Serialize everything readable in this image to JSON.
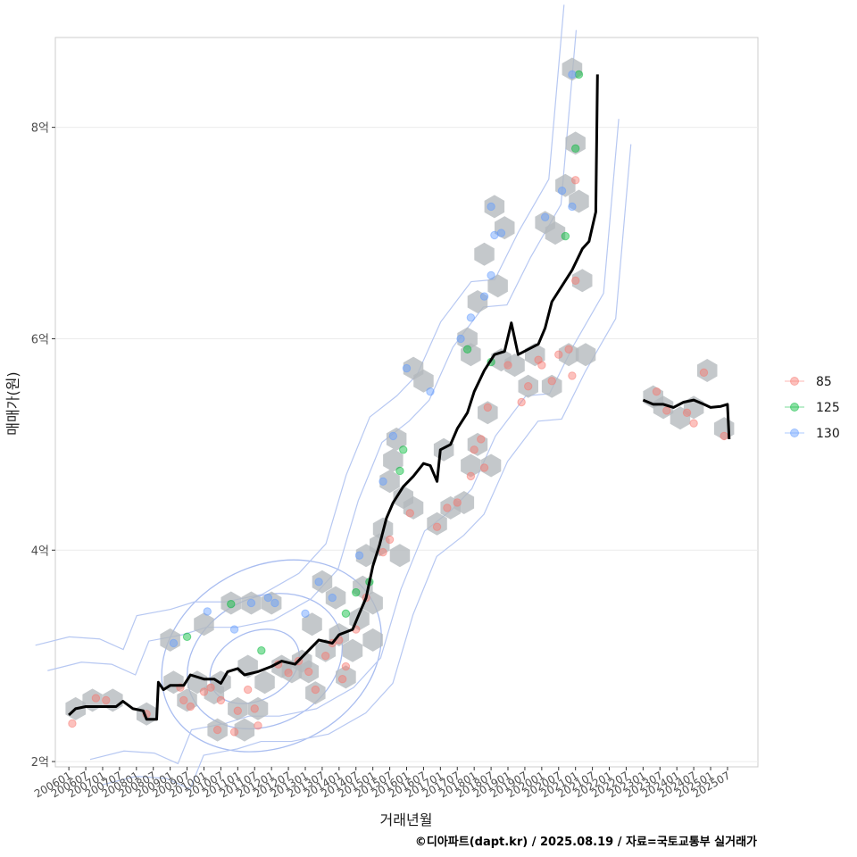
{
  "chart_data": {
    "type": "scatter",
    "xlabel": "거래년월",
    "ylabel": "매매가(원)",
    "caption": "©디아파트(dapt.kr) / 2025.08.19 / 자료=국토교통부 실거래가",
    "x_ticks": [
      "200601",
      "200607",
      "200701",
      "200707",
      "200801",
      "200807",
      "200901",
      "200907",
      "201001",
      "201007",
      "201101",
      "201107",
      "201201",
      "201207",
      "201301",
      "201307",
      "201401",
      "201407",
      "201501",
      "201507",
      "201601",
      "201607",
      "201701",
      "201707",
      "201801",
      "201807",
      "201901",
      "201907",
      "202001",
      "202007",
      "202101",
      "202107",
      "202201",
      "202207",
      "202301",
      "202307",
      "202401",
      "202407",
      "202501",
      "202507"
    ],
    "y_ticks": [
      {
        "value": 2,
        "label": "2억"
      },
      {
        "value": 4,
        "label": "4억"
      },
      {
        "value": 6,
        "label": "6억"
      },
      {
        "value": 8,
        "label": "8억"
      }
    ],
    "x_range": [
      2005.6,
      2026.4
    ],
    "y_range": [
      1.95,
      8.85
    ],
    "grid": true,
    "legend_position": "right",
    "legend": [
      {
        "name": "85",
        "color": "#F8766D"
      },
      {
        "name": "125",
        "color": "#00BA38"
      },
      {
        "name": "130",
        "color": "#619CFF"
      }
    ],
    "median_line": [
      [
        2006.0,
        2.44
      ],
      [
        2006.2,
        2.5
      ],
      [
        2006.5,
        2.52
      ],
      [
        2007.0,
        2.52
      ],
      [
        2007.4,
        2.52
      ],
      [
        2007.6,
        2.57
      ],
      [
        2007.9,
        2.5
      ],
      [
        2008.2,
        2.48
      ],
      [
        2008.3,
        2.4
      ],
      [
        2008.6,
        2.4
      ],
      [
        2008.65,
        2.75
      ],
      [
        2008.8,
        2.68
      ],
      [
        2009.0,
        2.72
      ],
      [
        2009.4,
        2.72
      ],
      [
        2009.6,
        2.82
      ],
      [
        2010.0,
        2.78
      ],
      [
        2010.3,
        2.78
      ],
      [
        2010.5,
        2.74
      ],
      [
        2010.7,
        2.85
      ],
      [
        2011.0,
        2.88
      ],
      [
        2011.2,
        2.82
      ],
      [
        2011.6,
        2.85
      ],
      [
        2012.0,
        2.9
      ],
      [
        2012.3,
        2.95
      ],
      [
        2012.7,
        2.92
      ],
      [
        2013.0,
        3.02
      ],
      [
        2013.4,
        3.15
      ],
      [
        2013.8,
        3.12
      ],
      [
        2014.0,
        3.2
      ],
      [
        2014.4,
        3.25
      ],
      [
        2014.6,
        3.4
      ],
      [
        2014.8,
        3.55
      ],
      [
        2015.0,
        3.85
      ],
      [
        2015.2,
        4.05
      ],
      [
        2015.4,
        4.3
      ],
      [
        2015.6,
        4.45
      ],
      [
        2015.9,
        4.6
      ],
      [
        2016.2,
        4.7
      ],
      [
        2016.5,
        4.82
      ],
      [
        2016.7,
        4.8
      ],
      [
        2016.9,
        4.65
      ],
      [
        2017.0,
        4.95
      ],
      [
        2017.3,
        5.0
      ],
      [
        2017.5,
        5.15
      ],
      [
        2017.8,
        5.3
      ],
      [
        2018.0,
        5.5
      ],
      [
        2018.3,
        5.7
      ],
      [
        2018.6,
        5.85
      ],
      [
        2018.9,
        5.88
      ],
      [
        2019.1,
        6.15
      ],
      [
        2019.3,
        5.85
      ],
      [
        2019.6,
        5.9
      ],
      [
        2019.9,
        5.95
      ],
      [
        2020.1,
        6.1
      ],
      [
        2020.3,
        6.35
      ],
      [
        2020.6,
        6.5
      ],
      [
        2020.9,
        6.65
      ],
      [
        2021.2,
        6.85
      ],
      [
        2021.4,
        6.92
      ],
      [
        2021.6,
        7.2
      ],
      [
        2021.65,
        8.5
      ]
    ],
    "median_line_2": [
      [
        2023.0,
        5.42
      ],
      [
        2023.3,
        5.38
      ],
      [
        2023.6,
        5.38
      ],
      [
        2023.9,
        5.35
      ],
      [
        2024.2,
        5.4
      ],
      [
        2024.5,
        5.42
      ],
      [
        2024.8,
        5.38
      ],
      [
        2025.0,
        5.35
      ],
      [
        2025.3,
        5.36
      ],
      [
        2025.5,
        5.38
      ],
      [
        2025.55,
        5.05
      ]
    ],
    "points": [
      {
        "series": "85",
        "x": 2006.1,
        "y": 2.36
      },
      {
        "series": "85",
        "x": 2006.8,
        "y": 2.6
      },
      {
        "series": "85",
        "x": 2007.1,
        "y": 2.58
      },
      {
        "series": "85",
        "x": 2008.3,
        "y": 2.45
      },
      {
        "series": "85",
        "x": 2009.3,
        "y": 2.7
      },
      {
        "series": "85",
        "x": 2009.4,
        "y": 2.58
      },
      {
        "series": "85",
        "x": 2009.6,
        "y": 2.52
      },
      {
        "series": "85",
        "x": 2010.0,
        "y": 2.66
      },
      {
        "series": "85",
        "x": 2010.2,
        "y": 2.7
      },
      {
        "series": "85",
        "x": 2010.4,
        "y": 2.3
      },
      {
        "series": "85",
        "x": 2010.5,
        "y": 2.58
      },
      {
        "series": "85",
        "x": 2010.9,
        "y": 2.28
      },
      {
        "series": "85",
        "x": 2011.0,
        "y": 2.48
      },
      {
        "series": "85",
        "x": 2011.3,
        "y": 2.68
      },
      {
        "series": "85",
        "x": 2011.5,
        "y": 2.5
      },
      {
        "series": "85",
        "x": 2011.6,
        "y": 2.34
      },
      {
        "series": "85",
        "x": 2012.2,
        "y": 2.92
      },
      {
        "series": "85",
        "x": 2012.5,
        "y": 2.84
      },
      {
        "series": "85",
        "x": 2012.8,
        "y": 2.95
      },
      {
        "series": "85",
        "x": 2013.1,
        "y": 2.85
      },
      {
        "series": "85",
        "x": 2013.3,
        "y": 2.68
      },
      {
        "series": "85",
        "x": 2013.6,
        "y": 3.0
      },
      {
        "series": "85",
        "x": 2013.8,
        "y": 3.12
      },
      {
        "series": "85",
        "x": 2014.0,
        "y": 3.15
      },
      {
        "series": "85",
        "x": 2014.1,
        "y": 2.78
      },
      {
        "series": "85",
        "x": 2014.2,
        "y": 2.9
      },
      {
        "series": "85",
        "x": 2014.5,
        "y": 3.25
      },
      {
        "series": "85",
        "x": 2014.8,
        "y": 3.55
      },
      {
        "series": "85",
        "x": 2015.3,
        "y": 3.98
      },
      {
        "series": "85",
        "x": 2015.5,
        "y": 4.1
      },
      {
        "series": "85",
        "x": 2016.1,
        "y": 4.35
      },
      {
        "series": "85",
        "x": 2016.9,
        "y": 4.22
      },
      {
        "series": "85",
        "x": 2017.2,
        "y": 4.4
      },
      {
        "series": "85",
        "x": 2017.5,
        "y": 4.45
      },
      {
        "series": "85",
        "x": 2017.9,
        "y": 4.7
      },
      {
        "series": "85",
        "x": 2018.0,
        "y": 4.95
      },
      {
        "series": "85",
        "x": 2018.2,
        "y": 5.05
      },
      {
        "series": "85",
        "x": 2018.3,
        "y": 4.78
      },
      {
        "series": "85",
        "x": 2018.4,
        "y": 5.35
      },
      {
        "series": "85",
        "x": 2019.0,
        "y": 5.75
      },
      {
        "series": "85",
        "x": 2019.4,
        "y": 5.4
      },
      {
        "series": "85",
        "x": 2019.6,
        "y": 5.55
      },
      {
        "series": "85",
        "x": 2019.9,
        "y": 5.8
      },
      {
        "series": "85",
        "x": 2020.0,
        "y": 5.75
      },
      {
        "series": "85",
        "x": 2020.3,
        "y": 5.6
      },
      {
        "series": "85",
        "x": 2020.5,
        "y": 5.85
      },
      {
        "series": "85",
        "x": 2020.8,
        "y": 5.9
      },
      {
        "series": "85",
        "x": 2020.9,
        "y": 5.65
      },
      {
        "series": "85",
        "x": 2021.0,
        "y": 7.5
      },
      {
        "series": "85",
        "x": 2021.0,
        "y": 6.55
      },
      {
        "series": "85",
        "x": 2023.4,
        "y": 5.5
      },
      {
        "series": "85",
        "x": 2023.7,
        "y": 5.32
      },
      {
        "series": "85",
        "x": 2024.3,
        "y": 5.3
      },
      {
        "series": "85",
        "x": 2024.5,
        "y": 5.2
      },
      {
        "series": "85",
        "x": 2024.8,
        "y": 5.68
      },
      {
        "series": "85",
        "x": 2025.4,
        "y": 5.08
      },
      {
        "series": "125",
        "x": 2009.5,
        "y": 3.18
      },
      {
        "series": "125",
        "x": 2010.8,
        "y": 3.49
      },
      {
        "series": "125",
        "x": 2011.7,
        "y": 3.05
      },
      {
        "series": "125",
        "x": 2014.2,
        "y": 3.4
      },
      {
        "series": "125",
        "x": 2014.5,
        "y": 3.6
      },
      {
        "series": "125",
        "x": 2014.9,
        "y": 3.7
      },
      {
        "series": "125",
        "x": 2015.9,
        "y": 4.95
      },
      {
        "series": "125",
        "x": 2015.8,
        "y": 4.75
      },
      {
        "series": "125",
        "x": 2017.8,
        "y": 5.9
      },
      {
        "series": "125",
        "x": 2018.5,
        "y": 5.78
      },
      {
        "series": "125",
        "x": 2020.7,
        "y": 6.97
      },
      {
        "series": "125",
        "x": 2021.0,
        "y": 7.8
      },
      {
        "series": "125",
        "x": 2021.1,
        "y": 8.5
      },
      {
        "series": "130",
        "x": 2009.1,
        "y": 3.12
      },
      {
        "series": "130",
        "x": 2010.1,
        "y": 3.42
      },
      {
        "series": "130",
        "x": 2010.9,
        "y": 3.25
      },
      {
        "series": "130",
        "x": 2011.4,
        "y": 3.5
      },
      {
        "series": "130",
        "x": 2011.9,
        "y": 3.55
      },
      {
        "series": "130",
        "x": 2012.1,
        "y": 3.5
      },
      {
        "series": "130",
        "x": 2013.0,
        "y": 3.4
      },
      {
        "series": "130",
        "x": 2013.4,
        "y": 3.7
      },
      {
        "series": "130",
        "x": 2013.8,
        "y": 3.55
      },
      {
        "series": "130",
        "x": 2014.6,
        "y": 3.95
      },
      {
        "series": "130",
        "x": 2015.3,
        "y": 4.65
      },
      {
        "series": "130",
        "x": 2015.6,
        "y": 5.08
      },
      {
        "series": "130",
        "x": 2016.0,
        "y": 5.72
      },
      {
        "series": "130",
        "x": 2016.7,
        "y": 5.5
      },
      {
        "series": "130",
        "x": 2017.6,
        "y": 6.0
      },
      {
        "series": "130",
        "x": 2017.9,
        "y": 6.2
      },
      {
        "series": "130",
        "x": 2018.3,
        "y": 6.4
      },
      {
        "series": "130",
        "x": 2018.5,
        "y": 6.6
      },
      {
        "series": "130",
        "x": 2018.6,
        "y": 6.98
      },
      {
        "series": "130",
        "x": 2018.8,
        "y": 7.0
      },
      {
        "series": "130",
        "x": 2018.5,
        "y": 7.25
      },
      {
        "series": "130",
        "x": 2020.1,
        "y": 7.15
      },
      {
        "series": "130",
        "x": 2020.6,
        "y": 7.4
      },
      {
        "series": "130",
        "x": 2020.9,
        "y": 7.25
      },
      {
        "series": "130",
        "x": 2020.9,
        "y": 8.5
      }
    ],
    "hexbins": [
      [
        2006.2,
        2.5
      ],
      [
        2006.7,
        2.58
      ],
      [
        2007.3,
        2.58
      ],
      [
        2008.3,
        2.45
      ],
      [
        2009.0,
        3.15
      ],
      [
        2009.1,
        2.75
      ],
      [
        2009.5,
        2.58
      ],
      [
        2009.8,
        2.75
      ],
      [
        2010.0,
        3.3
      ],
      [
        2010.3,
        2.65
      ],
      [
        2010.4,
        2.3
      ],
      [
        2010.5,
        2.75
      ],
      [
        2010.8,
        3.5
      ],
      [
        2011.0,
        2.5
      ],
      [
        2011.2,
        2.3
      ],
      [
        2011.3,
        2.9
      ],
      [
        2011.4,
        3.5
      ],
      [
        2011.6,
        2.5
      ],
      [
        2011.8,
        2.75
      ],
      [
        2012.0,
        3.5
      ],
      [
        2012.3,
        2.9
      ],
      [
        2012.6,
        2.85
      ],
      [
        2012.9,
        2.95
      ],
      [
        2013.1,
        2.85
      ],
      [
        2013.2,
        3.3
      ],
      [
        2013.3,
        2.65
      ],
      [
        2013.5,
        3.7
      ],
      [
        2013.6,
        3.05
      ],
      [
        2013.9,
        3.55
      ],
      [
        2014.0,
        3.2
      ],
      [
        2014.2,
        2.8
      ],
      [
        2014.4,
        3.05
      ],
      [
        2014.6,
        3.35
      ],
      [
        2014.7,
        3.65
      ],
      [
        2014.8,
        3.95
      ],
      [
        2015.0,
        3.5
      ],
      [
        2015.0,
        3.15
      ],
      [
        2015.2,
        4.05
      ],
      [
        2015.3,
        4.2
      ],
      [
        2015.5,
        4.65
      ],
      [
        2015.6,
        4.85
      ],
      [
        2015.7,
        5.05
      ],
      [
        2015.8,
        3.95
      ],
      [
        2015.9,
        4.5
      ],
      [
        2016.2,
        4.4
      ],
      [
        2016.2,
        5.72
      ],
      [
        2016.5,
        5.6
      ],
      [
        2016.9,
        4.25
      ],
      [
        2017.1,
        4.95
      ],
      [
        2017.3,
        4.4
      ],
      [
        2017.7,
        4.45
      ],
      [
        2017.8,
        6.0
      ],
      [
        2017.9,
        5.85
      ],
      [
        2017.9,
        4.8
      ],
      [
        2018.1,
        6.35
      ],
      [
        2018.1,
        5.0
      ],
      [
        2018.3,
        6.8
      ],
      [
        2018.4,
        5.3
      ],
      [
        2018.5,
        4.8
      ],
      [
        2018.6,
        7.25
      ],
      [
        2018.7,
        6.5
      ],
      [
        2018.9,
        7.05
      ],
      [
        2018.8,
        5.8
      ],
      [
        2019.2,
        5.75
      ],
      [
        2019.6,
        5.55
      ],
      [
        2019.8,
        5.85
      ],
      [
        2020.1,
        7.1
      ],
      [
        2020.3,
        5.55
      ],
      [
        2020.4,
        7.0
      ],
      [
        2020.7,
        7.45
      ],
      [
        2020.8,
        5.85
      ],
      [
        2020.9,
        8.55
      ],
      [
        2021.0,
        7.85
      ],
      [
        2021.1,
        7.3
      ],
      [
        2021.2,
        6.55
      ],
      [
        2021.3,
        5.85
      ],
      [
        2023.3,
        5.45
      ],
      [
        2023.6,
        5.35
      ],
      [
        2024.1,
        5.25
      ],
      [
        2024.5,
        5.35
      ],
      [
        2024.9,
        5.7
      ],
      [
        2025.4,
        5.15
      ]
    ],
    "contours": [
      {
        "cx": 2011.5,
        "cy": 2.9,
        "rx": 1.4,
        "ry": 0.32
      },
      {
        "cx": 2011.8,
        "cy": 2.95,
        "rx": 2.4,
        "ry": 0.6
      },
      {
        "cx": 2012.0,
        "cy": 3.0,
        "rx": 3.4,
        "ry": 0.85
      }
    ]
  }
}
